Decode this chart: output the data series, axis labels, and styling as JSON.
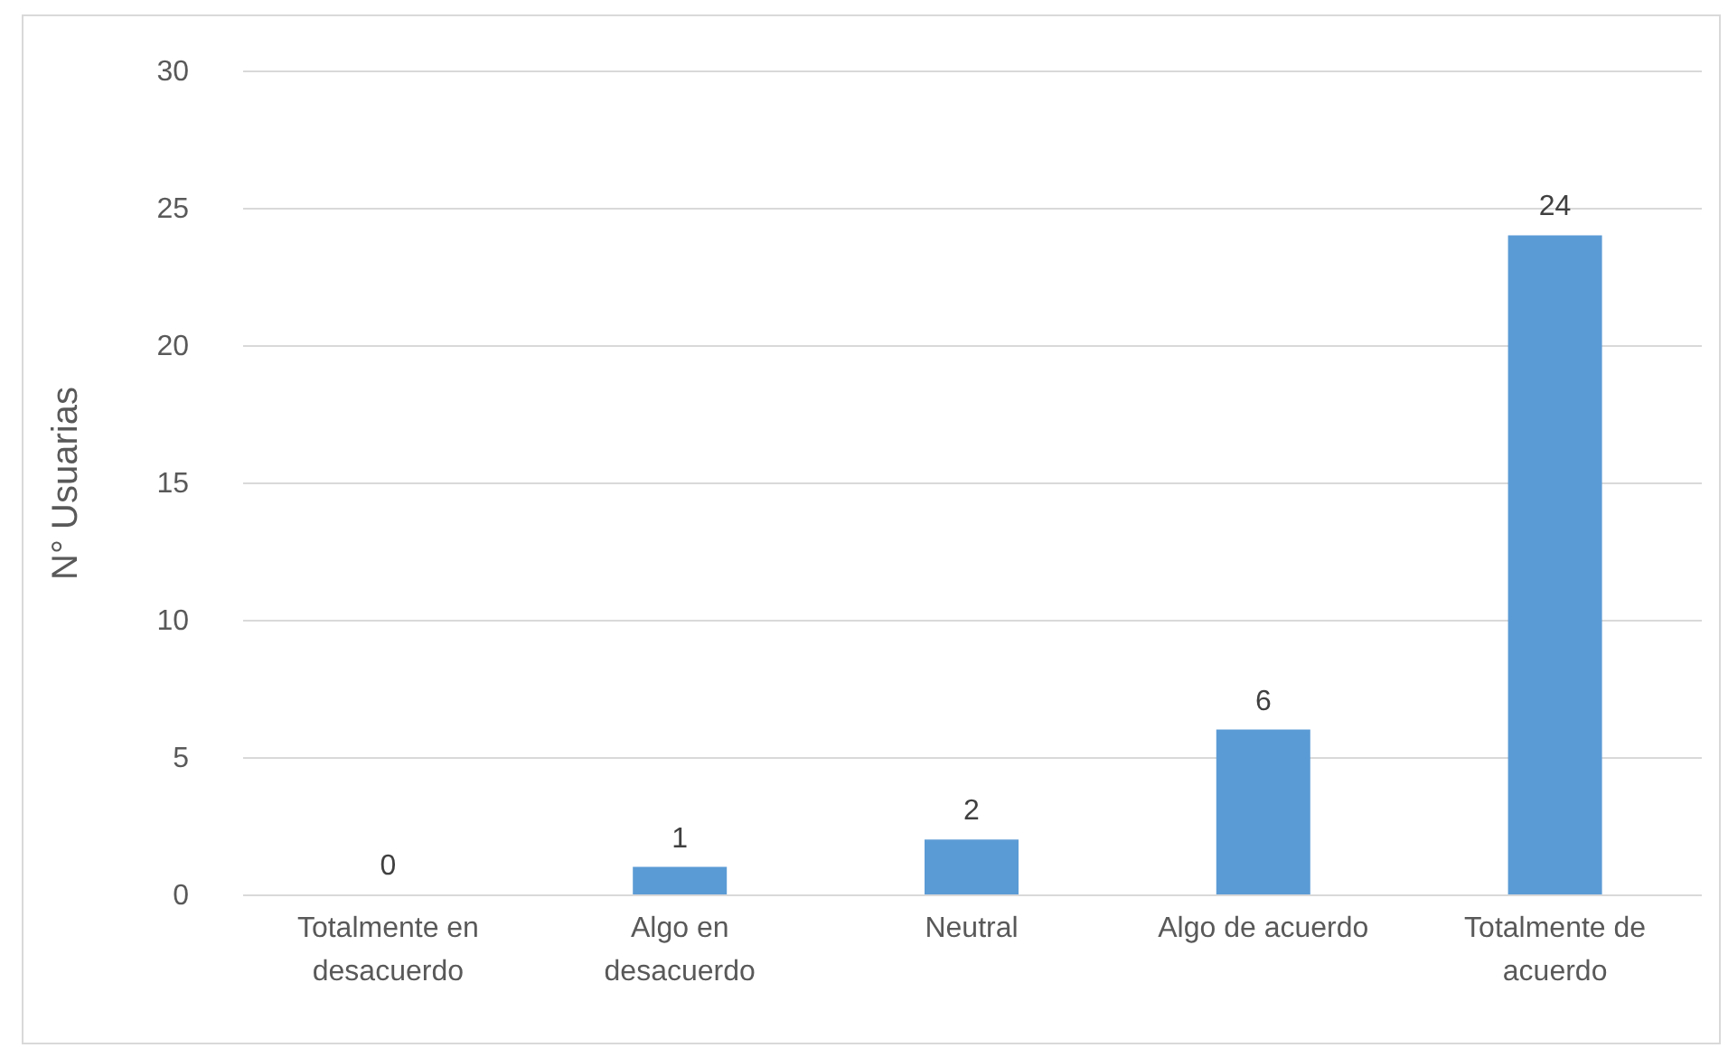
{
  "chart_data": {
    "type": "bar",
    "ylabel": "N° Usuarias",
    "categories": [
      "Totalmente en desacuerdo",
      "Algo en desacuerdo",
      "Neutral",
      "Algo de acuerdo",
      "Totalmente de acuerdo"
    ],
    "values": [
      0,
      1,
      2,
      6,
      24
    ],
    "color": "#5b9bd5",
    "ylim": [
      0,
      30
    ],
    "yticks": [
      0,
      5,
      10,
      15,
      20,
      25,
      30
    ],
    "grid": "y",
    "data_labels": true
  }
}
